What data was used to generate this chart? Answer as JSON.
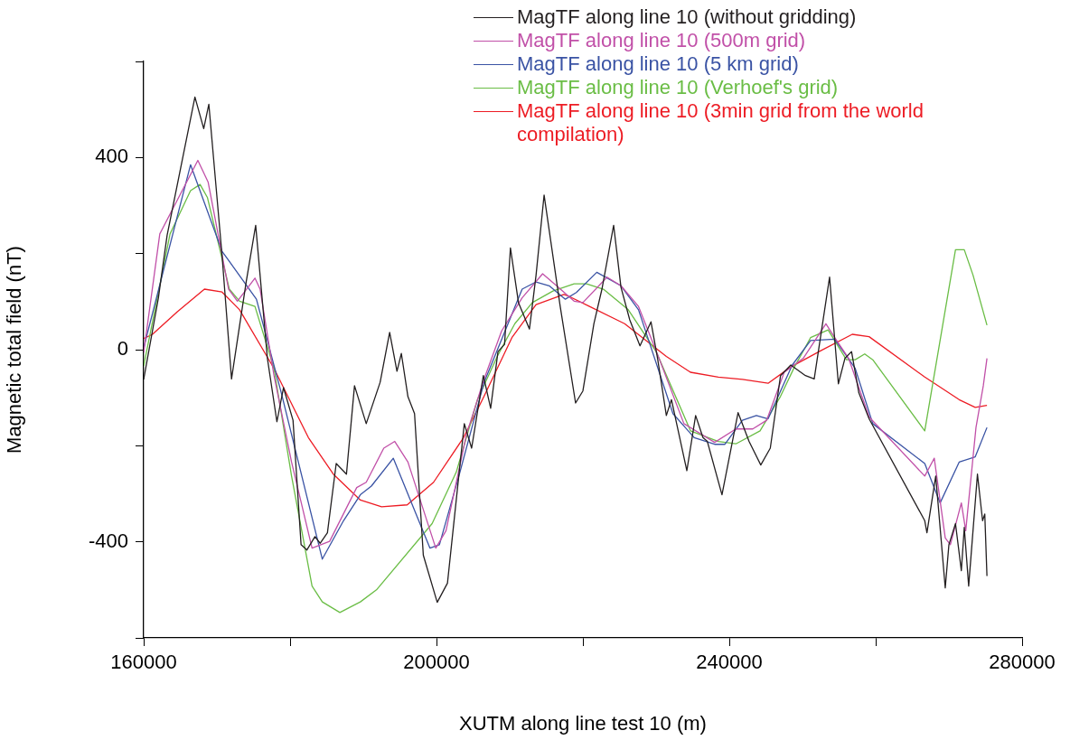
{
  "chart_data": {
    "type": "line",
    "xlabel": "XUTM along line test 10 (m)",
    "ylabel": "Magnetic total field (nT)",
    "xlim": [
      160000,
      280000
    ],
    "xticks": [
      160000,
      {
        "value": 180000,
        "label": null
      },
      200000,
      {
        "value": 220000,
        "label": null
      },
      240000,
      {
        "value": 260000,
        "label": null
      },
      280000
    ],
    "ylim": [
      -600,
      600
    ],
    "yticks": [
      {
        "value": -600,
        "label": null
      },
      -400,
      {
        "value": -200,
        "label": null
      },
      0,
      {
        "value": 200,
        "label": null
      },
      400,
      {
        "value": 600,
        "label": null
      }
    ],
    "grid": false,
    "legend": "top right",
    "marker": "none",
    "line_style": "solid",
    "series": [
      {
        "name": "MagTF along line 10 (without gridding)",
        "color": "#231f20",
        "x": [
          160000,
          162000,
          163200,
          167000,
          168200,
          168900,
          170700,
          172000,
          174000,
          175300,
          176900,
          178200,
          179100,
          180400,
          181500,
          182300,
          183400,
          184100,
          185100,
          186300,
          187700,
          188800,
          190400,
          192300,
          193600,
          194600,
          195200,
          196100,
          197000,
          198200,
          200100,
          201500,
          203800,
          204800,
          206400,
          207400,
          208400,
          209300,
          210100,
          211200,
          212700,
          213600,
          214700,
          216900,
          219000,
          220000,
          221500,
          222600,
          224200,
          225200,
          226400,
          227800,
          229300,
          230200,
          231400,
          232100,
          234200,
          235400,
          236400,
          237000,
          239000,
          241200,
          242700,
          244300,
          245600,
          247000,
          248400,
          250400,
          251600,
          253700,
          254900,
          255800,
          256700,
          257700,
          259100,
          266700,
          267000,
          268200,
          269500,
          270000,
          270900,
          271700,
          272100,
          272700,
          273900,
          274600,
          274900,
          275200
        ],
        "values": [
          -62,
          107,
          238,
          526,
          460,
          511,
          197,
          -61,
          141,
          259,
          -18,
          -150,
          -79,
          -147,
          -406,
          -417,
          -389,
          -403,
          -381,
          -237,
          -259,
          -75,
          -154,
          -68,
          36,
          -45,
          -8,
          -98,
          -133,
          -428,
          -526,
          -486,
          -154,
          -205,
          -54,
          -122,
          -4,
          11,
          212,
          98,
          43,
          155,
          322,
          90,
          -111,
          -86,
          54,
          126,
          259,
          130,
          62,
          8,
          58,
          -18,
          -137,
          -104,
          -252,
          -137,
          -183,
          -191,
          -302,
          -131,
          -191,
          -240,
          -205,
          -54,
          -32,
          -54,
          -61,
          151,
          -71,
          -18,
          -4,
          -90,
          -144,
          -356,
          -381,
          -263,
          -496,
          -406,
          -362,
          -460,
          -370,
          -492,
          -259,
          -356,
          -342,
          -471
        ]
      },
      {
        "name": "MagTF along line 10 (500m grid)",
        "color": "#c150a8",
        "x": [
          160000,
          162200,
          167400,
          168800,
          171600,
          172800,
          175200,
          175900,
          177800,
          180200,
          183000,
          185400,
          189100,
          190400,
          192800,
          194300,
          196100,
          199900,
          201300,
          204100,
          206500,
          208900,
          211700,
          214500,
          216400,
          218800,
          220000,
          223300,
          225200,
          227600,
          230400,
          233800,
          238000,
          240900,
          243200,
          245100,
          247500,
          250100,
          253200,
          254400,
          256300,
          259100,
          266700,
          268000,
          269500,
          270200,
          271700,
          272300,
          273700,
          274700,
          275200
        ],
        "values": [
          -6,
          241,
          394,
          349,
          126,
          101,
          149,
          126,
          -54,
          -234,
          -413,
          -399,
          -287,
          -276,
          -205,
          -191,
          -234,
          -413,
          -377,
          -176,
          -61,
          39,
          108,
          158,
          133,
          101,
          98,
          151,
          133,
          90,
          -18,
          -154,
          -193,
          -165,
          -165,
          -147,
          -47,
          -18,
          54,
          25,
          -18,
          -140,
          -263,
          -226,
          -392,
          -406,
          -319,
          -377,
          -162,
          -75,
          -18
        ]
      },
      {
        "name": "MagTF along line 10 (5 km grid)",
        "color": "#3a53a4",
        "x": [
          160000,
          166400,
          170700,
          175400,
          178800,
          184400,
          187300,
          189600,
          191100,
          194100,
          199100,
          200400,
          203200,
          206500,
          211700,
          213600,
          215400,
          217600,
          219100,
          221900,
          225200,
          227600,
          232300,
          235200,
          238000,
          239400,
          241800,
          243700,
          245300,
          248600,
          251100,
          254400,
          257200,
          259600,
          266700,
          268800,
          271400,
          273600,
          275200
        ],
        "values": [
          4,
          385,
          205,
          105,
          -90,
          -436,
          -356,
          -302,
          -284,
          -226,
          -413,
          -406,
          -255,
          -68,
          126,
          141,
          133,
          105,
          119,
          161,
          133,
          83,
          -133,
          -183,
          -197,
          -197,
          -147,
          -137,
          -144,
          -32,
          19,
          22,
          -39,
          -154,
          -237,
          -319,
          -234,
          -223,
          -162
        ]
      },
      {
        "name": "MagTF along line 10 (Verhoef's grid)",
        "color": "#6abd45",
        "x": [
          160000,
          163600,
          166400,
          167700,
          168700,
          171700,
          173100,
          175200,
          177800,
          180200,
          183000,
          184400,
          186800,
          189600,
          191800,
          199400,
          202700,
          205600,
          208400,
          210700,
          213100,
          215900,
          218800,
          220500,
          222800,
          226200,
          230000,
          234700,
          238500,
          240900,
          244200,
          247000,
          248900,
          251100,
          253500,
          256000,
          257200,
          258500,
          259600,
          266700,
          270900,
          272100,
          273300,
          275200
        ],
        "values": [
          -34,
          241,
          331,
          344,
          317,
          126,
          101,
          90,
          -39,
          -263,
          -492,
          -525,
          -547,
          -525,
          -500,
          -362,
          -255,
          -104,
          -11,
          54,
          98,
          122,
          137,
          137,
          126,
          83,
          -4,
          -169,
          -191,
          -196,
          -169,
          -97,
          -36,
          25,
          41,
          -21,
          -21,
          -9,
          -21,
          -169,
          208,
          208,
          155,
          51
        ]
      },
      {
        "name": "MagTF along line 10 (3min grid from the world compilation)",
        "color": "#ed1c24",
        "x": [
          160000,
          161200,
          164600,
          168300,
          170700,
          173100,
          177800,
          182500,
          185900,
          189600,
          192500,
          196000,
          199600,
          203700,
          206500,
          210300,
          213600,
          217400,
          218100,
          220900,
          225700,
          231400,
          234700,
          238500,
          241800,
          245300,
          248400,
          252500,
          256800,
          259100,
          266700,
          271400,
          273600,
          275200
        ],
        "values": [
          23,
          32,
          79,
          126,
          120,
          83,
          -39,
          -183,
          -259,
          -313,
          -327,
          -323,
          -276,
          -183,
          -97,
          25,
          94,
          115,
          111,
          90,
          54,
          -14,
          -47,
          -57,
          -62,
          -70,
          -36,
          -2,
          32,
          27,
          -57,
          -104,
          -120,
          -116
        ]
      }
    ]
  }
}
